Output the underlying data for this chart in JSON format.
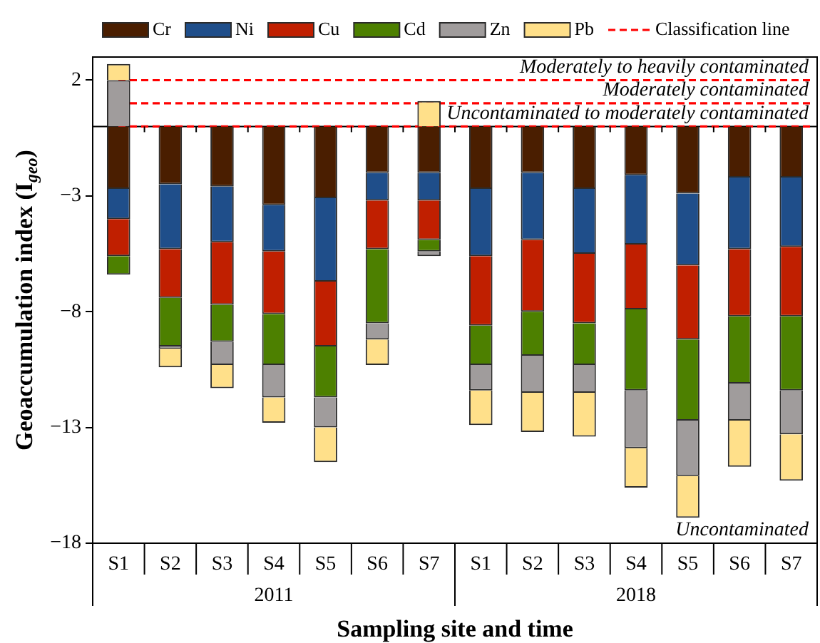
{
  "chart_data": {
    "type": "bar",
    "stacked": true,
    "xlabel": "Sampling site and time",
    "ylabel": "Geoaccumulation index (I$_{geo}$)",
    "categories": [
      "S1",
      "S2",
      "S3",
      "S4",
      "S5",
      "S6",
      "S7",
      "S1",
      "S2",
      "S3",
      "S4",
      "S5",
      "S6",
      "S7"
    ],
    "series": [
      {
        "name": "Cr",
        "color": "#4a1e00",
        "values": [
          -2.7,
          -2.5,
          -2.6,
          -3.4,
          -3.1,
          -2.0,
          -2.0,
          -2.7,
          -2.0,
          -2.7,
          -2.1,
          -2.9,
          -2.2,
          -2.2
        ]
      },
      {
        "name": "Ni",
        "color": "#1f4e8a",
        "values": [
          -1.3,
          -2.8,
          -2.4,
          -2.0,
          -3.6,
          -1.2,
          -1.2,
          -2.9,
          -2.9,
          -2.8,
          -3.0,
          -3.1,
          -3.1,
          -3.0
        ]
      },
      {
        "name": "Cu",
        "color": "#c01f00",
        "values": [
          -1.6,
          -2.1,
          -2.7,
          -2.7,
          -2.8,
          -2.1,
          -1.7,
          -3.0,
          -3.1,
          -3.0,
          -2.8,
          -3.2,
          -2.9,
          -3.0
        ]
      },
      {
        "name": "Cd",
        "color": "#4d8000",
        "values": [
          -0.8,
          -2.1,
          -1.6,
          -2.2,
          -2.2,
          -3.2,
          -0.5,
          -1.7,
          -1.9,
          -1.8,
          -3.5,
          -3.5,
          -2.9,
          -3.2
        ]
      },
      {
        "name": "Zn",
        "color": "#a09c9c",
        "values": [
          2.0,
          -0.1,
          -1.0,
          -1.4,
          -1.3,
          -0.7,
          -0.2,
          -1.1,
          -1.6,
          -1.2,
          -2.5,
          -2.4,
          -1.6,
          -1.9
        ]
      },
      {
        "name": "Pb",
        "color": "#ffe08a",
        "values": [
          0.7,
          -0.8,
          -1.0,
          -1.1,
          -1.5,
          -1.1,
          1.1,
          -1.5,
          -1.7,
          -1.9,
          -1.7,
          -1.8,
          -2.0,
          -2.0
        ]
      }
    ],
    "ylim": [
      -18,
      3
    ],
    "yticks": [
      2,
      -3,
      -8,
      -13,
      -18
    ],
    "grid": false,
    "legend": "top",
    "ref_lines": [
      {
        "axis": "y",
        "value": 2,
        "label": "Moderately to heavily contaminated",
        "color": "#ff0000",
        "line_style": "dashed"
      },
      {
        "axis": "y",
        "value": 1,
        "label": "Moderately contaminated",
        "color": "#ff0000",
        "line_style": "dashed"
      },
      {
        "axis": "y",
        "value": 0,
        "label": "Uncontaminated to moderately contaminated",
        "color": "#ff0000",
        "line_style": "dashed"
      }
    ],
    "annotations": [
      "Classification line",
      "Uncontaminated",
      "2011",
      "2018"
    ]
  }
}
